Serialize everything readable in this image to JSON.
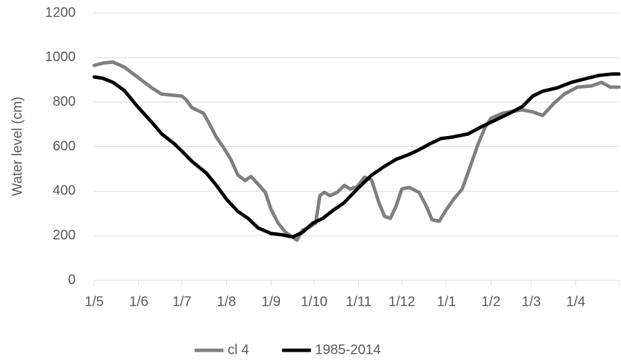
{
  "chart_data": {
    "type": "line",
    "y_label": "Water level (cm)",
    "xlim": [
      0,
      365
    ],
    "xticks": [
      {
        "value": 0,
        "label": "1/5"
      },
      {
        "value": 31,
        "label": "1/6"
      },
      {
        "value": 61,
        "label": "1/7"
      },
      {
        "value": 92,
        "label": "1/8"
      },
      {
        "value": 123,
        "label": "1/9"
      },
      {
        "value": 153,
        "label": "1/10"
      },
      {
        "value": 184,
        "label": "1/11"
      },
      {
        "value": 214,
        "label": "1/12"
      },
      {
        "value": 245,
        "label": "1/1"
      },
      {
        "value": 276,
        "label": "1/2"
      },
      {
        "value": 304,
        "label": "1/3"
      },
      {
        "value": 335,
        "label": "1/4"
      }
    ],
    "ylim": [
      0,
      1200
    ],
    "yticks": [
      0,
      200,
      400,
      600,
      800,
      1000,
      1200
    ],
    "grid": true,
    "legend": "bottom",
    "series": [
      {
        "name": "cl 4",
        "color": "#7f7f7f",
        "x": [
          0,
          6,
          13,
          21,
          30,
          40,
          47,
          56,
          61,
          64,
          68,
          76,
          80,
          85,
          90,
          95,
          100,
          105,
          109,
          114,
          119,
          123,
          128,
          133,
          138,
          141,
          145,
          150,
          154,
          157,
          160,
          164,
          169,
          174,
          178,
          183,
          188,
          193,
          198,
          202,
          206,
          210,
          214,
          219,
          226,
          231,
          235,
          240,
          245,
          250,
          256,
          262,
          267,
          272,
          276,
          284,
          291,
          298,
          305,
          312,
          320,
          327,
          336,
          346,
          353,
          359,
          365
        ],
        "values": [
          965,
          975,
          980,
          957,
          913,
          864,
          836,
          830,
          827,
          810,
          775,
          750,
          704,
          642,
          596,
          543,
          472,
          448,
          466,
          432,
          395,
          318,
          256,
          216,
          194,
          180,
          225,
          240,
          256,
          380,
          395,
          380,
          395,
          426,
          410,
          420,
          463,
          450,
          349,
          287,
          278,
          333,
          410,
          417,
          395,
          333,
          272,
          265,
          318,
          364,
          410,
          519,
          611,
          688,
          728,
          750,
          759,
          765,
          756,
          740,
          796,
          836,
          867,
          873,
          889,
          867,
          867
        ]
      },
      {
        "name": "1985-2014",
        "color": "#000000",
        "x": [
          0,
          6,
          13,
          21,
          30,
          40,
          47,
          56,
          61,
          68,
          78,
          85,
          92,
          100,
          107,
          114,
          123,
          131,
          138,
          145,
          152,
          159,
          167,
          174,
          183,
          193,
          202,
          210,
          219,
          226,
          233,
          241,
          248,
          260,
          269,
          279,
          289,
          298,
          305,
          312,
          322,
          332,
          341,
          351,
          360,
          365
        ],
        "values": [
          913,
          907,
          889,
          852,
          781,
          710,
          657,
          611,
          580,
          534,
          481,
          426,
          364,
          309,
          278,
          235,
          210,
          204,
          194,
          216,
          256,
          278,
          318,
          349,
          410,
          472,
          512,
          543,
          565,
          586,
          611,
          636,
          642,
          657,
          688,
          719,
          750,
          781,
          827,
          849,
          864,
          889,
          904,
          920,
          926,
          926
        ]
      }
    ]
  }
}
